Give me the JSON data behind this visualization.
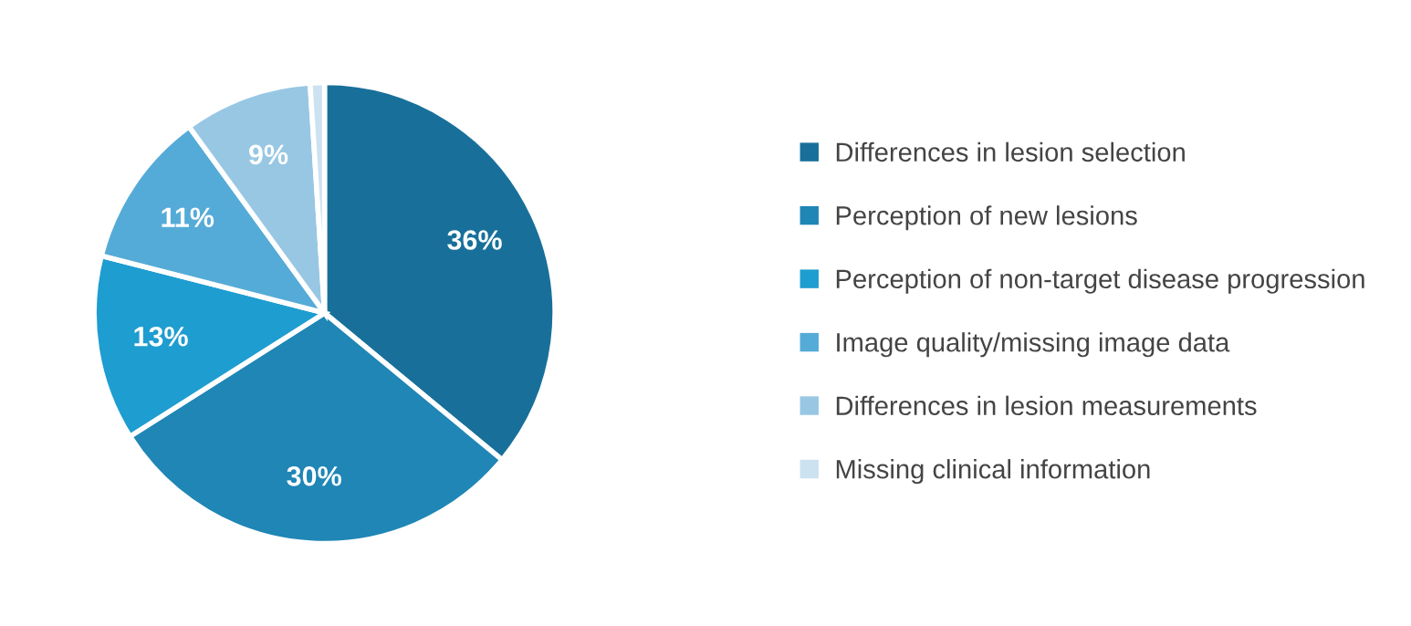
{
  "chart_data": {
    "type": "pie",
    "categories": [
      "Differences in lesion selection",
      "Perception of new lesions",
      "Perception of non-target disease progression",
      "Image quality/missing image data",
      "Differences in lesion measurements",
      "Missing clinical information"
    ],
    "values": [
      36,
      30,
      13,
      11,
      9,
      1
    ],
    "value_labels": [
      "36%",
      "30%",
      "13%",
      "11%",
      "9%",
      null
    ],
    "colors": [
      "#18709a",
      "#1f86b6",
      "#1e9dd0",
      "#55abd7",
      "#98c7e4",
      "#cde2f0"
    ],
    "legend": "right"
  }
}
